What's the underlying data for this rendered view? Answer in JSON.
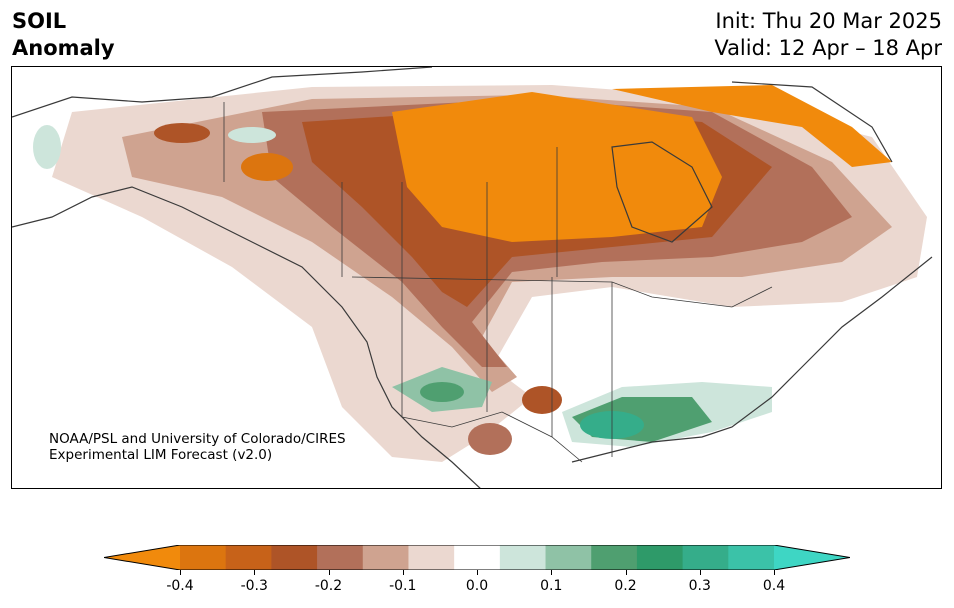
{
  "title": {
    "line1": "SOIL",
    "line2": "Anomaly",
    "init": "Init: Thu 20 Mar 2025",
    "valid": "Valid: 12 Apr – 18 Apr"
  },
  "credit": {
    "line1": "NOAA/PSL and University of Colorado/CIRES",
    "line2": "Experimental LIM Forecast (v2.0)"
  },
  "colorbar": {
    "levels": [
      -0.4,
      -0.35,
      -0.3,
      -0.25,
      -0.2,
      -0.15,
      -0.1,
      -0.05,
      0.05,
      0.1,
      0.15,
      0.2,
      0.25,
      0.3,
      0.35,
      0.4
    ],
    "colors": [
      "#f18a0c",
      "#dc750f",
      "#c76219",
      "#ae5427",
      "#b2705a",
      "#cfa390",
      "#ebd8d0",
      "#ffffff",
      "#cde5db",
      "#8fc2a6",
      "#4f9f70",
      "#2e9a69",
      "#35ad8a",
      "#3bc2a8",
      "#3ed6c4"
    ],
    "tick_labels": [
      "-0.4",
      "-0.3",
      "-0.2",
      "-0.1",
      "0.0",
      "0.1",
      "0.2",
      "0.3",
      "0.4"
    ]
  }
}
